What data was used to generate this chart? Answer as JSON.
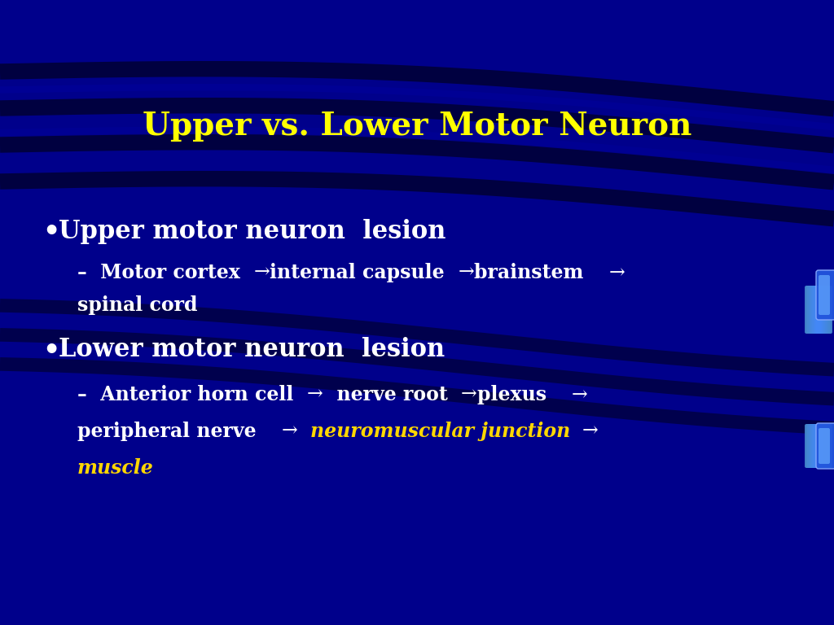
{
  "title": "Upper vs. Lower Motor Neuron",
  "title_color": "#FFFF00",
  "title_fontsize": 28,
  "bg_color": "#00008B",
  "white": "#FFFFFF",
  "yellow": "#FFD700",
  "bullet1": "Upper motor neuron  lesion",
  "bullet2": "Lower motor neuron  lesion",
  "sub1_line2": "spinal cord",
  "sub2_line3": "muscle",
  "sub2_line3_color": "#FFD700",
  "fontsize_bullet": 22,
  "fontsize_sub": 17,
  "fontfamily": "DejaVu Serif"
}
